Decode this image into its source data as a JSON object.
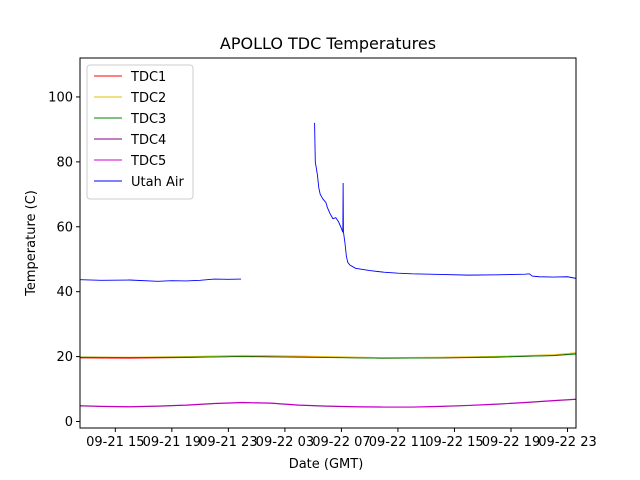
{
  "chart_data": {
    "type": "line",
    "title": "APOLLO TDC Temperatures",
    "xlabel": "Date (GMT)",
    "ylabel": "Temperature (C)",
    "xlim": [
      12.5,
      47.6
    ],
    "ylim": [
      -2,
      112
    ],
    "x_unit": "hours since 09-21 00:00 GMT",
    "y_ticks": [
      0,
      20,
      40,
      60,
      80,
      100
    ],
    "x_ticks": [
      {
        "value": 15,
        "label": "09-21 15"
      },
      {
        "value": 19,
        "label": "09-21 19"
      },
      {
        "value": 23,
        "label": "09-21 23"
      },
      {
        "value": 27,
        "label": "09-22 03"
      },
      {
        "value": 31,
        "label": "09-22 07"
      },
      {
        "value": 35,
        "label": "09-22 11"
      },
      {
        "value": 39,
        "label": "09-22 15"
      },
      {
        "value": 43,
        "label": "09-22 19"
      },
      {
        "value": 47,
        "label": "09-22 23"
      }
    ],
    "legend_position": "top-left",
    "series": [
      {
        "name": "TDC1",
        "color": "#ff0000",
        "segments": [
          [
            [
              12.5,
              19.6
            ],
            [
              16,
              19.5
            ],
            [
              20,
              19.7
            ],
            [
              24,
              20.1
            ],
            [
              26,
              20.0
            ],
            [
              30,
              19.8
            ],
            [
              34,
              19.5
            ],
            [
              38,
              19.6
            ],
            [
              42,
              19.8
            ],
            [
              46,
              20.4
            ],
            [
              47.6,
              20.9
            ]
          ]
        ]
      },
      {
        "name": "TDC2",
        "color": "#e6c200",
        "segments": [
          [
            [
              12.5,
              19.9
            ],
            [
              16,
              19.8
            ],
            [
              20,
              20.0
            ],
            [
              24,
              20.4
            ],
            [
              26,
              20.3
            ],
            [
              30,
              20.0
            ],
            [
              34,
              19.7
            ],
            [
              38,
              19.8
            ],
            [
              42,
              20.1
            ],
            [
              46,
              20.6
            ],
            [
              47.6,
              21.2
            ]
          ]
        ]
      },
      {
        "name": "TDC3",
        "color": "#008000",
        "segments": [
          [
            [
              12.5,
              19.8
            ],
            [
              16,
              19.7
            ],
            [
              20,
              19.8
            ],
            [
              24,
              20.0
            ],
            [
              26,
              19.9
            ],
            [
              30,
              19.7
            ],
            [
              34,
              19.5
            ],
            [
              38,
              19.6
            ],
            [
              42,
              19.9
            ],
            [
              46,
              20.3
            ],
            [
              47.6,
              20.8
            ]
          ]
        ]
      },
      {
        "name": "TDC4",
        "color": "#800080",
        "segments": [
          [
            [
              12.5,
              4.8
            ],
            [
              14,
              4.6
            ],
            [
              16,
              4.5
            ],
            [
              18,
              4.7
            ],
            [
              20,
              5.0
            ],
            [
              22,
              5.5
            ],
            [
              24,
              5.8
            ],
            [
              26,
              5.6
            ],
            [
              28,
              5.0
            ],
            [
              30,
              4.7
            ],
            [
              32,
              4.5
            ],
            [
              34,
              4.4
            ],
            [
              36,
              4.4
            ],
            [
              38,
              4.6
            ],
            [
              40,
              4.9
            ],
            [
              42,
              5.3
            ],
            [
              44,
              5.8
            ],
            [
              46,
              6.4
            ],
            [
              47.6,
              6.8
            ]
          ]
        ]
      },
      {
        "name": "TDC5",
        "color": "#cc00cc",
        "segments": [
          [
            [
              12.5,
              4.9
            ],
            [
              14,
              4.7
            ],
            [
              16,
              4.6
            ],
            [
              18,
              4.8
            ],
            [
              20,
              5.1
            ],
            [
              22,
              5.6
            ],
            [
              24,
              5.9
            ],
            [
              26,
              5.7
            ],
            [
              28,
              5.1
            ],
            [
              30,
              4.8
            ],
            [
              32,
              4.6
            ],
            [
              34,
              4.5
            ],
            [
              36,
              4.5
            ],
            [
              38,
              4.7
            ],
            [
              40,
              5.0
            ],
            [
              42,
              5.4
            ],
            [
              44,
              5.9
            ],
            [
              46,
              6.5
            ],
            [
              47.6,
              6.9
            ]
          ]
        ]
      },
      {
        "name": "Utah Air",
        "color": "#0000ff",
        "segments": [
          [
            [
              12.5,
              43.7
            ],
            [
              14,
              43.5
            ],
            [
              16,
              43.6
            ],
            [
              18,
              43.2
            ],
            [
              19,
              43.4
            ],
            [
              20,
              43.3
            ],
            [
              21,
              43.5
            ],
            [
              22,
              43.9
            ],
            [
              23,
              43.8
            ],
            [
              23.9,
              43.9
            ]
          ],
          [
            [
              29.1,
              92.0
            ],
            [
              29.15,
              80
            ],
            [
              29.3,
              76
            ],
            [
              29.4,
              72
            ],
            [
              29.5,
              70
            ],
            [
              29.7,
              68.5
            ],
            [
              29.9,
              67.5
            ],
            [
              30.0,
              66
            ],
            [
              30.2,
              64
            ],
            [
              30.4,
              62.5
            ],
            [
              30.6,
              62.8
            ],
            [
              30.8,
              61.5
            ],
            [
              31.0,
              59.5
            ],
            [
              31.1,
              58.3
            ],
            [
              31.12,
              73.5
            ],
            [
              31.14,
              58.5
            ],
            [
              31.25,
              55
            ],
            [
              31.35,
              51
            ],
            [
              31.45,
              49
            ],
            [
              31.6,
              48.2
            ],
            [
              32,
              47.2
            ],
            [
              33,
              46.5
            ],
            [
              34,
              46.0
            ],
            [
              35,
              45.7
            ],
            [
              36,
              45.5
            ],
            [
              38,
              45.3
            ],
            [
              40,
              45.1
            ],
            [
              42,
              45.2
            ],
            [
              44,
              45.4
            ],
            [
              44.3,
              45.5
            ],
            [
              44.5,
              44.8
            ],
            [
              45,
              44.6
            ],
            [
              46,
              44.5
            ],
            [
              47,
              44.6
            ],
            [
              47.6,
              44.1
            ]
          ]
        ]
      }
    ]
  }
}
